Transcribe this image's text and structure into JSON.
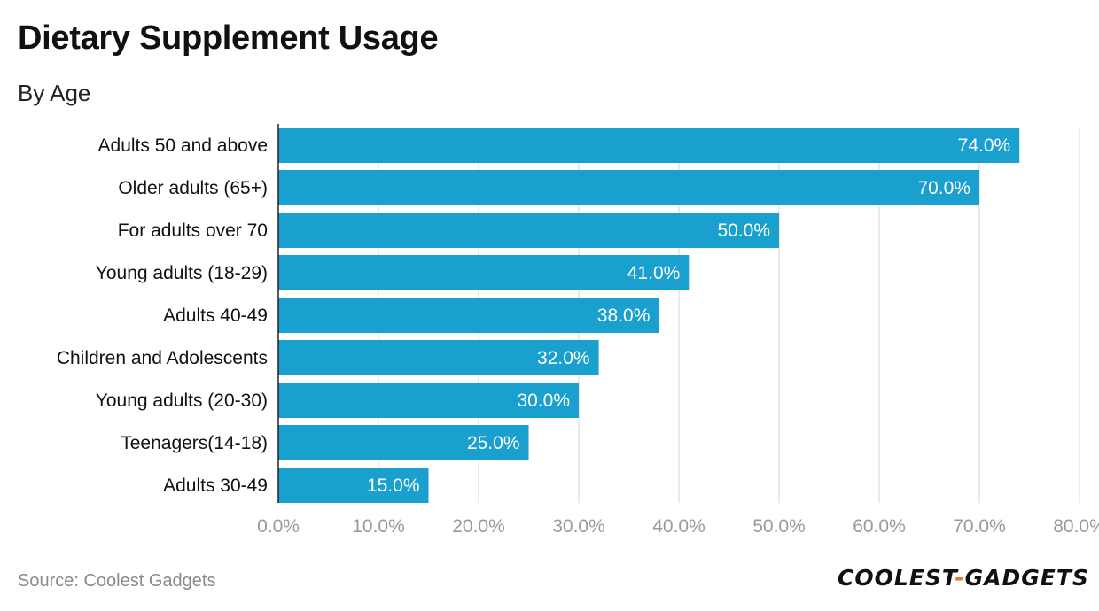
{
  "chart_data": {
    "type": "bar",
    "orientation": "horizontal",
    "title": "Dietary Supplement Usage",
    "subtitle": "By Age",
    "categories": [
      "Adults 50 and above",
      "Older adults (65+)",
      "For adults over 70",
      "Young adults (18-29)",
      "Adults 40-49",
      "Children and Adolescents",
      "Young adults (20-30)",
      "Teenagers(14-18)",
      "Adults 30-49"
    ],
    "values": [
      74.0,
      70.0,
      50.0,
      41.0,
      38.0,
      32.0,
      30.0,
      25.0,
      15.0
    ],
    "value_labels": [
      "74.0%",
      "70.0%",
      "50.0%",
      "41.0%",
      "38.0%",
      "32.0%",
      "30.0%",
      "25.0%",
      "15.0%"
    ],
    "xlim": [
      0,
      80
    ],
    "xticks": [
      "0.0%",
      "10.0%",
      "20.0%",
      "30.0%",
      "40.0%",
      "50.0%",
      "60.0%",
      "70.0%",
      "80.0%"
    ],
    "grid": true,
    "bar_color": "#1aa0cf"
  },
  "footer": {
    "source": "Source: Coolest Gadgets",
    "brand_left": "COOLEST",
    "brand_dash": "-",
    "brand_right": "GADGETS"
  }
}
